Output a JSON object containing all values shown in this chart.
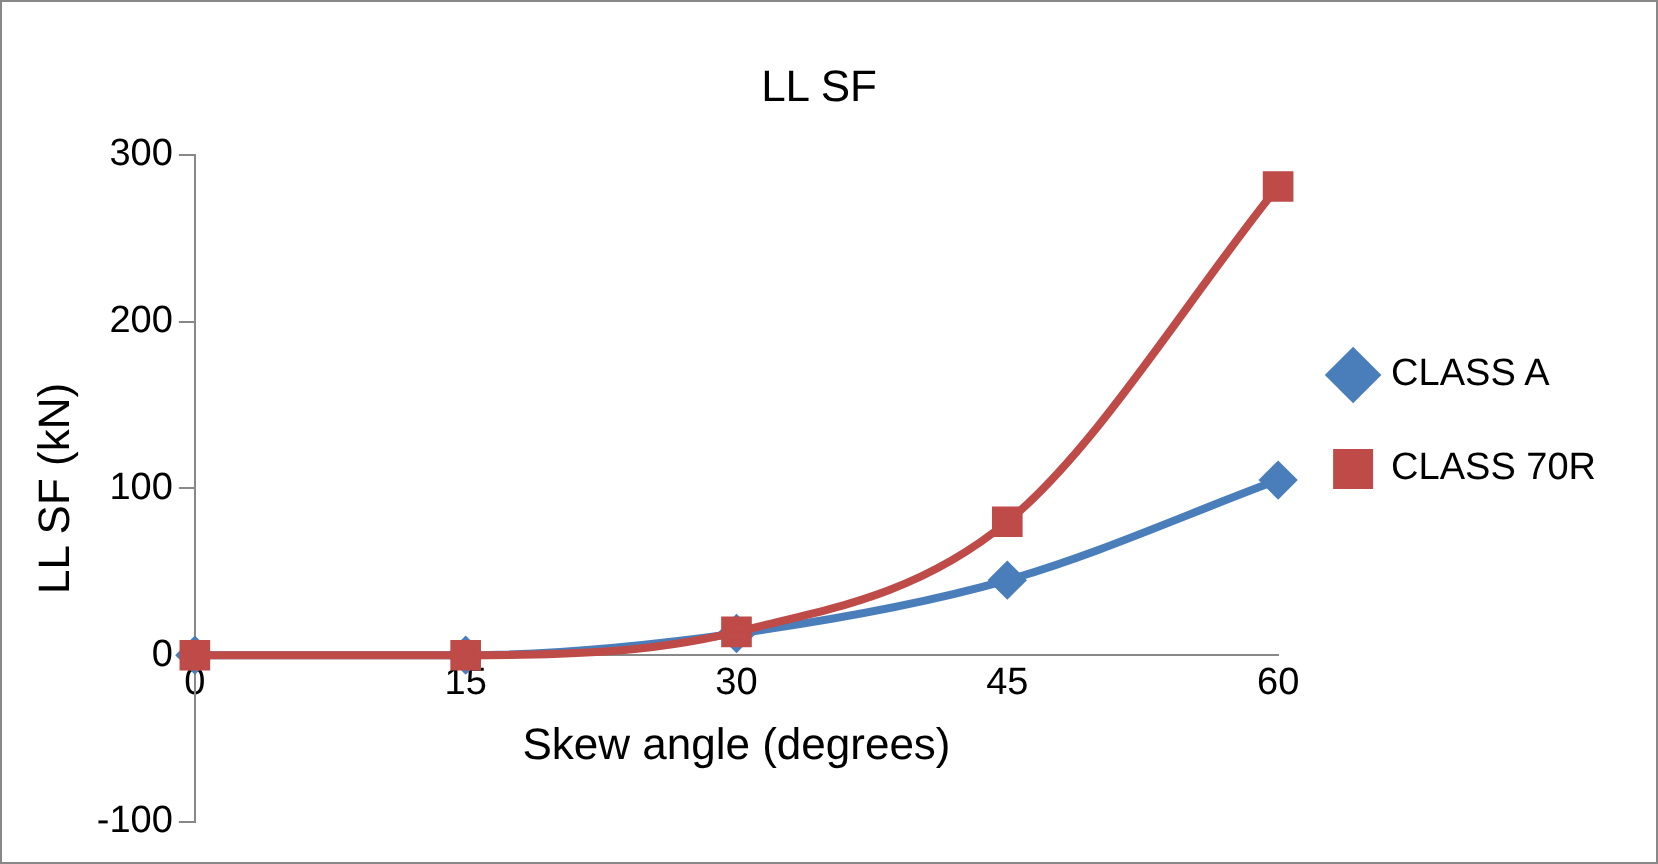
{
  "chart_data": {
    "type": "line",
    "title": "LL SF",
    "xlabel": "Skew angle (degrees)",
    "ylabel": "LL SF (kN)",
    "x": [
      0,
      15,
      30,
      45,
      60
    ],
    "xlim": [
      0,
      60
    ],
    "xticks": [
      0,
      15,
      30,
      45,
      60
    ],
    "ylim": [
      -100,
      300
    ],
    "yticks": [
      -100,
      0,
      100,
      200,
      300
    ],
    "grid": false,
    "legend": "right",
    "series": [
      {
        "name": "CLASS A",
        "color": "#4a7ebb",
        "marker": "diamond",
        "values": [
          0,
          0,
          13,
          45,
          105
        ]
      },
      {
        "name": "CLASS 70R",
        "color": "#be4b48",
        "marker": "square",
        "values": [
          0,
          0,
          14,
          80,
          281
        ]
      }
    ]
  }
}
